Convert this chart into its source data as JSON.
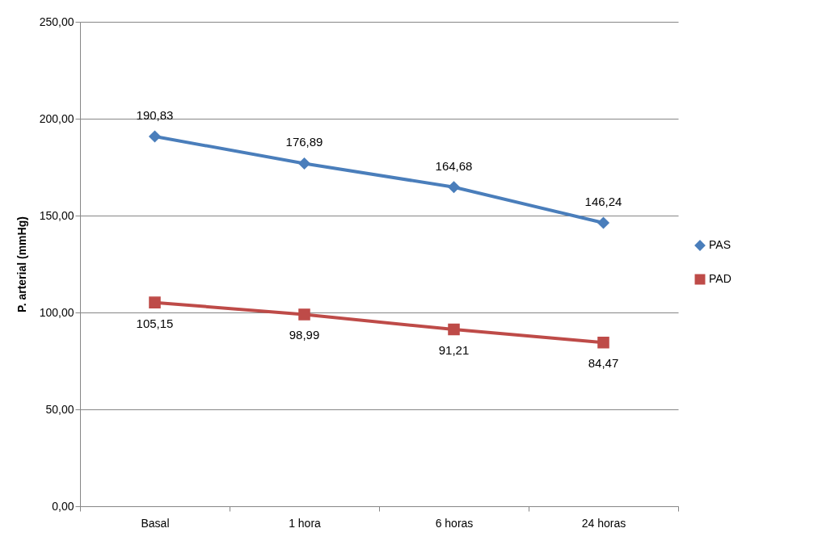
{
  "chart_data": {
    "type": "line",
    "ylabel": "P. arterial (mmHg)",
    "categories": [
      "Basal",
      "1 hora",
      "6 horas",
      "24 horas"
    ],
    "series": [
      {
        "name": "PAS",
        "color": "#4a7ebb",
        "marker": "diamond",
        "values": [
          190.83,
          176.89,
          164.68,
          146.24
        ],
        "value_labels": [
          "190,83",
          "176,89",
          "164,68",
          "146,24"
        ]
      },
      {
        "name": "PAD",
        "color": "#be4b48",
        "marker": "square",
        "values": [
          105.15,
          98.99,
          91.21,
          84.47
        ],
        "value_labels": [
          "105,15",
          "98,99",
          "91,21",
          "84,47"
        ]
      }
    ],
    "ylim": [
      0,
      250
    ],
    "yticks": [
      {
        "value": 0,
        "label": "0,00"
      },
      {
        "value": 50,
        "label": "50,00"
      },
      {
        "value": 100,
        "label": "100,00"
      },
      {
        "value": 150,
        "label": "150,00"
      },
      {
        "value": 200,
        "label": "200,00"
      },
      {
        "value": 250,
        "label": "250,00"
      }
    ],
    "grid": "y",
    "legend": "right",
    "line_style": "solid"
  }
}
